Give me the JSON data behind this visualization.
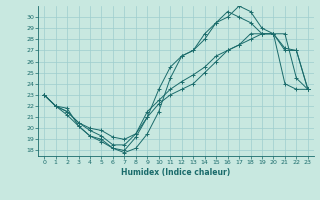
{
  "title": "",
  "xlabel": "Humidex (Indice chaleur)",
  "xlim": [
    -0.5,
    23.5
  ],
  "ylim": [
    17.5,
    31.0
  ],
  "yticks": [
    18,
    19,
    20,
    21,
    22,
    23,
    24,
    25,
    26,
    27,
    28,
    29,
    30
  ],
  "xticks": [
    0,
    1,
    2,
    3,
    4,
    5,
    6,
    7,
    8,
    9,
    10,
    11,
    12,
    13,
    14,
    15,
    16,
    17,
    18,
    19,
    20,
    21,
    22,
    23
  ],
  "background_color": "#c8e8e0",
  "line_color": "#1a6b6b",
  "grid_color": "#9ecece",
  "lines": [
    {
      "x": [
        0,
        1,
        2,
        3,
        4,
        5,
        6,
        7,
        8,
        9,
        10,
        11,
        12,
        13,
        14,
        15,
        16,
        17,
        18,
        19,
        20,
        21,
        22,
        23
      ],
      "y": [
        23,
        22,
        21.8,
        20.2,
        19.3,
        19.0,
        18.2,
        17.8,
        18.2,
        19.5,
        21.5,
        24.5,
        26.5,
        27,
        28,
        29.5,
        30,
        31,
        30.5,
        29.0,
        28.5,
        28.5,
        24.5,
        23.5
      ]
    },
    {
      "x": [
        0,
        1,
        2,
        3,
        4,
        5,
        6,
        7,
        8,
        9,
        10,
        11,
        12,
        13,
        14,
        15,
        16,
        17,
        18,
        19,
        20,
        21,
        22,
        23
      ],
      "y": [
        23,
        22,
        21.2,
        20.2,
        19.3,
        18.8,
        18.2,
        18.0,
        19.2,
        21.0,
        23.5,
        25.5,
        26.5,
        27,
        28.5,
        29.5,
        30.5,
        30,
        29.5,
        28.5,
        28.5,
        24.0,
        23.5,
        23.5
      ]
    },
    {
      "x": [
        0,
        1,
        2,
        3,
        4,
        5,
        6,
        7,
        8,
        9,
        10,
        11,
        12,
        13,
        14,
        15,
        16,
        17,
        18,
        19,
        20,
        21,
        22,
        23
      ],
      "y": [
        23,
        22,
        21.5,
        20.5,
        19.8,
        19.3,
        18.5,
        18.5,
        19.5,
        21.5,
        22.5,
        23.5,
        24.2,
        24.8,
        25.5,
        26.5,
        27.0,
        27.5,
        28.5,
        28.5,
        28.5,
        27.2,
        27.0,
        23.5
      ]
    },
    {
      "x": [
        0,
        1,
        2,
        3,
        4,
        5,
        6,
        7,
        8,
        9,
        10,
        11,
        12,
        13,
        14,
        15,
        16,
        17,
        18,
        19,
        20,
        21,
        22,
        23
      ],
      "y": [
        23,
        22,
        21.5,
        20.5,
        20.0,
        19.8,
        19.2,
        19.0,
        19.5,
        21.0,
        22.2,
        23.0,
        23.5,
        24.0,
        25.0,
        26.0,
        27.0,
        27.5,
        28.0,
        28.5,
        28.5,
        27.0,
        27.0,
        23.5
      ]
    }
  ]
}
